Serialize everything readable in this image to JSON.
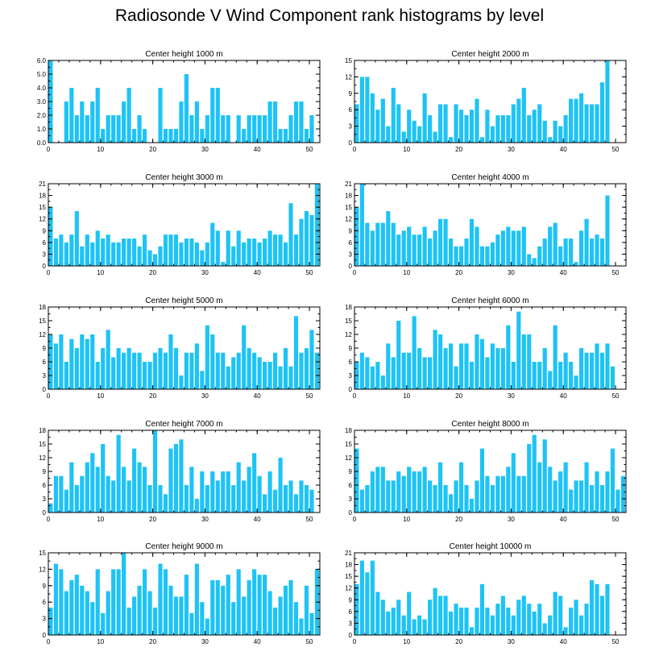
{
  "title": "Radiosonde V Wind Component rank histograms by level",
  "colors": {
    "bar": "#1ec3f5",
    "axis": "#000000"
  },
  "chart_data": [
    {
      "type": "bar",
      "title": "Center height 1000 m",
      "ylim": [
        0,
        6
      ],
      "yticks": [
        0.0,
        1.0,
        2.0,
        3.0,
        4.0,
        5.0,
        6.0
      ],
      "ytick_format": "1dp",
      "xlim": [
        0,
        52
      ],
      "xticks": [
        0,
        10,
        20,
        30,
        40,
        50
      ],
      "values": [
        6,
        0,
        0,
        3,
        4,
        2,
        3,
        2,
        3,
        4,
        1,
        2,
        2,
        2,
        3,
        4,
        1,
        2,
        1,
        0,
        0,
        4,
        1,
        1,
        1,
        3,
        5,
        2,
        3,
        1,
        2,
        4,
        4,
        2,
        2,
        0,
        2,
        1,
        2,
        2,
        2,
        2,
        3,
        3,
        1,
        1,
        2,
        3,
        3,
        1,
        2
      ]
    },
    {
      "type": "bar",
      "title": "Center height 2000 m",
      "ylim": [
        0,
        15
      ],
      "yticks": [
        0,
        3,
        6,
        9,
        12,
        15
      ],
      "ytick_format": "int",
      "xlim": [
        0,
        52
      ],
      "xticks": [
        0,
        10,
        20,
        30,
        40,
        50
      ],
      "values": [
        7,
        12,
        12,
        9,
        6,
        8,
        3,
        10,
        7,
        2,
        6,
        4,
        3,
        9,
        5,
        2,
        7,
        7,
        1,
        7,
        6,
        5,
        6,
        8,
        1,
        6,
        3,
        5,
        5,
        5,
        7,
        8,
        10,
        5,
        6,
        7,
        4,
        1,
        4,
        3,
        5,
        8,
        8,
        9,
        7,
        7,
        7,
        11,
        15,
        0,
        0
      ]
    },
    {
      "type": "bar",
      "title": "Center height 3000 m",
      "ylim": [
        0,
        21
      ],
      "yticks": [
        0,
        3,
        6,
        9,
        12,
        15,
        18,
        21
      ],
      "ytick_format": "int",
      "xlim": [
        0,
        52
      ],
      "xticks": [
        0,
        10,
        20,
        30,
        40,
        50
      ],
      "values": [
        15,
        7,
        8,
        6,
        8,
        14,
        5,
        8,
        6,
        9,
        7,
        8,
        6,
        6,
        7,
        7,
        7,
        5,
        8,
        4,
        3,
        5,
        8,
        8,
        8,
        6,
        7,
        7,
        6,
        4,
        6,
        11,
        9,
        1,
        9,
        5,
        9,
        6,
        7,
        7,
        6,
        7,
        9,
        8,
        8,
        6,
        16,
        8,
        12,
        14,
        13,
        21
      ]
    },
    {
      "type": "bar",
      "title": "Center height 4000 m",
      "ylim": [
        0,
        21
      ],
      "yticks": [
        0,
        3,
        6,
        9,
        12,
        15,
        18,
        21
      ],
      "ytick_format": "int",
      "xlim": [
        0,
        52
      ],
      "xticks": [
        0,
        10,
        20,
        30,
        40,
        50
      ],
      "values": [
        15,
        21,
        11,
        9,
        11,
        11,
        14,
        11,
        8,
        9,
        10,
        8,
        8,
        10,
        7,
        9,
        12,
        12,
        7,
        5,
        5,
        7,
        12,
        10,
        5,
        5,
        6,
        8,
        9,
        10,
        9,
        9,
        10,
        3,
        2,
        5,
        7,
        10,
        11,
        5,
        7,
        7,
        1,
        9,
        12,
        7,
        8,
        7,
        18
      ]
    },
    {
      "type": "bar",
      "title": "Center height 5000 m",
      "ylim": [
        0,
        18
      ],
      "yticks": [
        0,
        3,
        6,
        9,
        12,
        15,
        18
      ],
      "ytick_format": "int",
      "xlim": [
        0,
        52
      ],
      "xticks": [
        0,
        10,
        20,
        30,
        40,
        50
      ],
      "values": [
        12,
        10,
        12,
        6,
        11,
        9,
        12,
        11,
        12,
        6,
        9,
        13,
        7,
        9,
        8,
        9,
        8,
        8,
        6,
        6,
        8,
        9,
        8,
        12,
        9,
        3,
        8,
        8,
        10,
        4,
        14,
        12,
        8,
        8,
        5,
        7,
        8,
        14,
        9,
        8,
        7,
        6,
        6,
        8,
        5,
        9,
        5,
        16,
        8,
        9,
        13,
        8
      ]
    },
    {
      "type": "bar",
      "title": "Center height 6000 m",
      "ylim": [
        0,
        18
      ],
      "yticks": [
        0,
        3,
        6,
        9,
        12,
        15,
        18
      ],
      "ytick_format": "int",
      "xlim": [
        0,
        52
      ],
      "xticks": [
        0,
        10,
        20,
        30,
        40,
        50
      ],
      "values": [
        6,
        8,
        7,
        5,
        6,
        3,
        10,
        7,
        15,
        8,
        8,
        16,
        9,
        7,
        7,
        13,
        12,
        9,
        10,
        5,
        10,
        10,
        6,
        12,
        11,
        7,
        10,
        9,
        9,
        14,
        6,
        17,
        12,
        12,
        6,
        6,
        9,
        4,
        14,
        6,
        8,
        6,
        3,
        9,
        8,
        8,
        10,
        8,
        10,
        5
      ]
    },
    {
      "type": "bar",
      "title": "Center height 7000 m",
      "ylim": [
        0,
        18
      ],
      "yticks": [
        0,
        3,
        6,
        9,
        12,
        15,
        18
      ],
      "ytick_format": "int",
      "xlim": [
        0,
        52
      ],
      "xticks": [
        0,
        10,
        20,
        30,
        40,
        50
      ],
      "values": [
        2,
        8,
        8,
        5,
        11,
        6,
        8,
        11,
        13,
        10,
        15,
        8,
        7,
        17,
        10,
        7,
        14,
        11,
        10,
        6,
        18,
        6,
        4,
        14,
        15,
        16,
        6,
        10,
        3,
        9,
        6,
        9,
        7,
        9,
        9,
        6,
        11,
        7,
        10,
        13,
        8,
        4,
        9,
        5,
        12,
        6,
        7,
        4,
        7,
        6,
        5
      ]
    },
    {
      "type": "bar",
      "title": "Center height 8000 m",
      "ylim": [
        0,
        18
      ],
      "yticks": [
        0,
        3,
        6,
        9,
        12,
        15,
        18
      ],
      "ytick_format": "int",
      "xlim": [
        0,
        52
      ],
      "xticks": [
        0,
        10,
        20,
        30,
        40,
        50
      ],
      "values": [
        14,
        5,
        6,
        9,
        10,
        10,
        7,
        7,
        9,
        8,
        10,
        9,
        9,
        10,
        7,
        6,
        11,
        6,
        4,
        7,
        11,
        6,
        3,
        7,
        14,
        8,
        6,
        8,
        8,
        10,
        13,
        8,
        8,
        15,
        17,
        11,
        16,
        10,
        7,
        9,
        11,
        5,
        7,
        7,
        11,
        6,
        9,
        6,
        9,
        14,
        5,
        8
      ]
    },
    {
      "type": "bar",
      "title": "Center height 9000 m",
      "ylim": [
        0,
        15
      ],
      "yticks": [
        0,
        3,
        6,
        9,
        12,
        15
      ],
      "ytick_format": "int",
      "xlim": [
        0,
        52
      ],
      "xticks": [
        0,
        10,
        20,
        30,
        40,
        50
      ],
      "values": [
        5,
        13,
        12,
        8,
        10,
        11,
        9,
        8,
        6,
        12,
        4,
        8,
        12,
        12,
        15,
        5,
        7,
        9,
        12,
        8,
        5,
        13,
        12,
        9,
        7,
        7,
        11,
        4,
        13,
        6,
        3,
        10,
        10,
        9,
        11,
        6,
        12,
        7,
        10,
        12,
        11,
        11,
        8,
        5,
        7,
        9,
        10,
        6,
        3,
        9,
        4,
        12
      ]
    },
    {
      "type": "bar",
      "title": "Center height 10000 m",
      "ylim": [
        0,
        21
      ],
      "yticks": [
        0,
        3,
        6,
        9,
        12,
        15,
        18,
        21
      ],
      "ytick_format": "int",
      "xlim": [
        0,
        52
      ],
      "xticks": [
        0,
        10,
        20,
        30,
        40,
        50
      ],
      "values": [
        13,
        19,
        16,
        19,
        11,
        9,
        6,
        7,
        9,
        5,
        11,
        4,
        5,
        4,
        9,
        12,
        10,
        10,
        6,
        8,
        7,
        7,
        2,
        7,
        13,
        7,
        5,
        8,
        10,
        7,
        5,
        9,
        10,
        8,
        6,
        8,
        3,
        5,
        11,
        10,
        2,
        7,
        9,
        5,
        8,
        14,
        13,
        10,
        13
      ]
    }
  ]
}
